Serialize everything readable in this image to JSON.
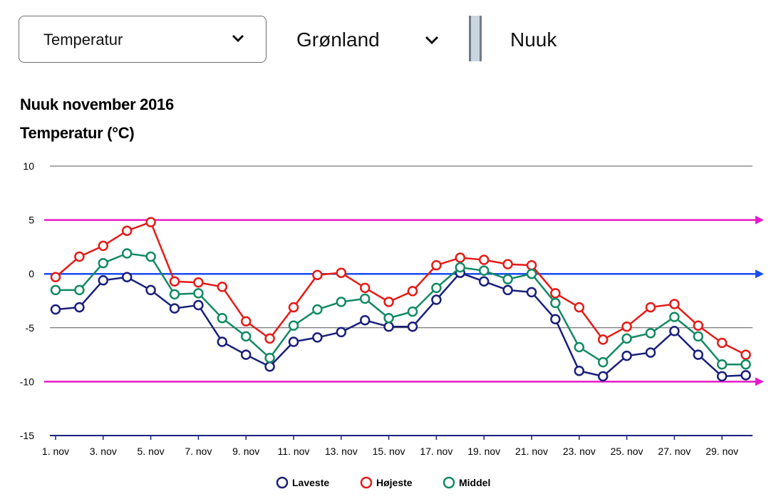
{
  "controls": {
    "parameter_dropdown": "Temperatur",
    "country_dropdown": "Grønland",
    "city": "Nuuk"
  },
  "colors": {
    "laveste": "#1a1f7a",
    "hojeste": "#e41b17",
    "middel": "#128a63",
    "reference_magenta": "#e619c8",
    "reference_blue": "#1a4cf0",
    "grid": "#555555"
  },
  "chart_data": {
    "type": "line",
    "title": "Nuuk november 2016",
    "subtitle": "Temperatur (°C)",
    "xlabel": "",
    "ylabel": "",
    "ylim": [
      -15,
      10
    ],
    "yticks": [
      10,
      5,
      0,
      -5,
      -10,
      -15
    ],
    "grid": true,
    "legend_position": "bottom",
    "x": [
      1,
      2,
      3,
      4,
      5,
      6,
      7,
      8,
      9,
      10,
      11,
      12,
      13,
      14,
      15,
      16,
      17,
      18,
      19,
      20,
      21,
      22,
      23,
      24,
      25,
      26,
      27,
      28,
      29,
      30
    ],
    "xtick_values": [
      1,
      3,
      5,
      7,
      9,
      11,
      13,
      15,
      17,
      19,
      21,
      23,
      25,
      27,
      29
    ],
    "xtick_labels": [
      "1. nov",
      "3. nov",
      "5. nov",
      "7. nov",
      "9. nov",
      "11. nov",
      "13. nov",
      "15. nov",
      "17. nov",
      "19. nov",
      "21. nov",
      "23. nov",
      "25. nov",
      "27. nov",
      "29. nov"
    ],
    "reference_lines": [
      {
        "value": 5,
        "color": "#e619c8"
      },
      {
        "value": 0,
        "color": "#1a4cf0"
      },
      {
        "value": -10,
        "color": "#e619c8"
      }
    ],
    "series": [
      {
        "name": "Laveste",
        "color": "#1a1f7a",
        "values": [
          -3.3,
          -3.1,
          -0.6,
          -0.3,
          -1.5,
          -3.2,
          -2.9,
          -6.3,
          -7.5,
          -8.6,
          -6.3,
          -5.9,
          -5.4,
          -4.3,
          -4.9,
          -4.9,
          -2.4,
          0.1,
          -0.7,
          -1.5,
          -1.7,
          -4.2,
          -9.0,
          -9.5,
          -7.6,
          -7.3,
          -5.3,
          -7.5,
          -9.5,
          -9.4
        ]
      },
      {
        "name": "Højeste",
        "color": "#e41b17",
        "values": [
          -0.3,
          1.6,
          2.6,
          4.0,
          4.8,
          -0.7,
          -0.8,
          -1.2,
          -4.4,
          -6.0,
          -3.1,
          -0.1,
          0.1,
          -1.3,
          -2.6,
          -1.6,
          0.8,
          1.5,
          1.3,
          0.9,
          0.8,
          -1.8,
          -3.1,
          -6.1,
          -4.9,
          -3.1,
          -2.8,
          -4.8,
          -6.4,
          -7.5
        ]
      },
      {
        "name": "Middel",
        "color": "#128a63",
        "values": [
          -1.5,
          -1.5,
          1.0,
          1.9,
          1.6,
          -1.9,
          -1.8,
          -4.1,
          -5.8,
          -7.8,
          -4.8,
          -3.3,
          -2.6,
          -2.3,
          -4.1,
          -3.5,
          -1.3,
          0.6,
          0.3,
          -0.5,
          0.0,
          -2.7,
          -6.8,
          -8.2,
          -6.0,
          -5.5,
          -4.0,
          -5.8,
          -8.4,
          -8.4
        ]
      }
    ]
  }
}
